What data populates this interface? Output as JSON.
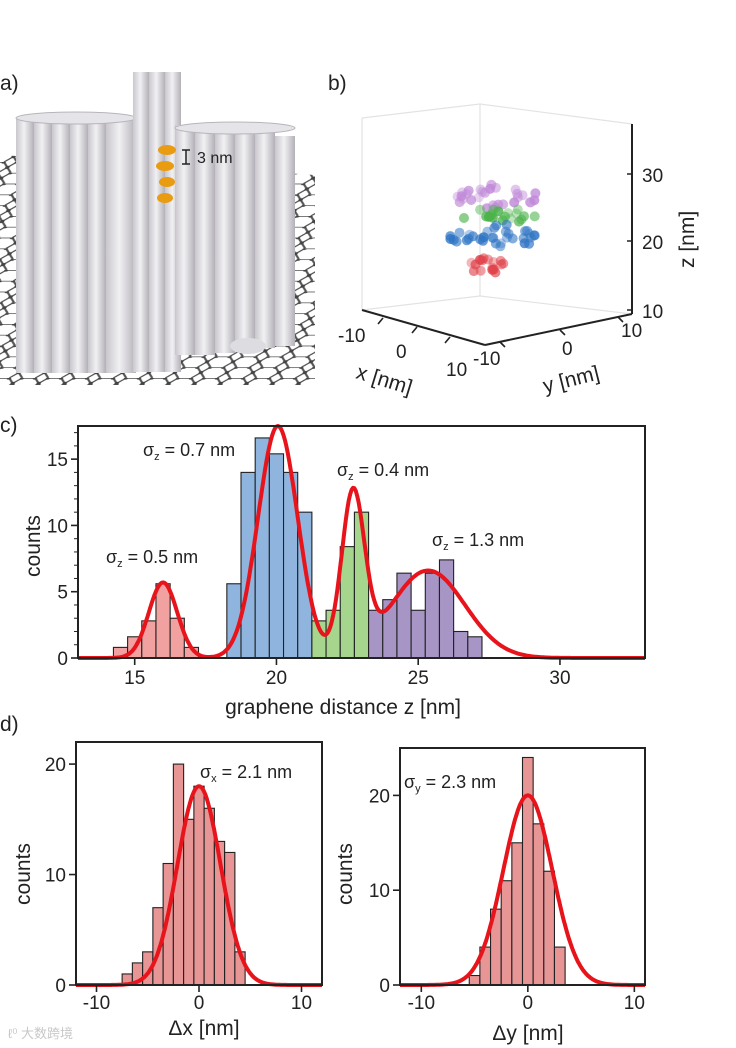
{
  "panel_labels": {
    "a": "a)",
    "b": "b)",
    "c": "c)",
    "d": "d)"
  },
  "panel_a": {
    "scale_label": "3 nm"
  },
  "panel_b": {
    "x_label": "x [nm]",
    "y_label": "y [nm]",
    "z_label": "z [nm]",
    "x_ticks": [
      "-10",
      "0",
      "10"
    ],
    "y_ticks": [
      "-10",
      "0",
      "10"
    ],
    "z_ticks": [
      "10",
      "20",
      "30"
    ]
  },
  "annotations": {
    "c1_sym": "σ",
    "c1_sub": "z",
    "c1_text": " = 0.5 nm",
    "c2_sym": "σ",
    "c2_sub": "z",
    "c2_text": " = 0.7 nm",
    "c3_sym": "σ",
    "c3_sub": "z",
    "c3_text": " = 0.4 nm",
    "c4_sym": "σ",
    "c4_sub": "z",
    "c4_text": " = 1.3 nm",
    "dx_sym": "σ",
    "dx_sub": "x",
    "dx_text": " = 2.1 nm",
    "dy_sym": "σ",
    "dy_sub": "y",
    "dy_text": " = 2.3 nm"
  },
  "watermark": "大数跨境",
  "colors": {
    "fit": "#e8141b",
    "red": "#f2a1a1",
    "blue": "#8fb4dd",
    "green": "#a6d58e",
    "purple": "#a795c6",
    "pink": "#e89595"
  },
  "chart_data": [
    {
      "id": "c",
      "type": "bar",
      "xlabel": "graphene distance z [nm]",
      "ylabel": "counts",
      "xlim": [
        13,
        33
      ],
      "ylim": [
        0,
        17.5
      ],
      "xticks": [
        15,
        20,
        25,
        30
      ],
      "yticks": [
        0,
        5,
        10,
        15
      ],
      "bin_width": 0.5,
      "bins": [
        {
          "x": 14.5,
          "v": 0.8,
          "c": "red"
        },
        {
          "x": 15.0,
          "v": 1.6,
          "c": "red"
        },
        {
          "x": 15.5,
          "v": 2.8,
          "c": "red"
        },
        {
          "x": 16.0,
          "v": 5.6,
          "c": "red"
        },
        {
          "x": 16.5,
          "v": 3.0,
          "c": "red"
        },
        {
          "x": 17.0,
          "v": 0.8,
          "c": "red"
        },
        {
          "x": 18.5,
          "v": 5.6,
          "c": "blue"
        },
        {
          "x": 19.0,
          "v": 14.0,
          "c": "blue"
        },
        {
          "x": 19.5,
          "v": 16.6,
          "c": "blue"
        },
        {
          "x": 20.0,
          "v": 15.4,
          "c": "blue"
        },
        {
          "x": 20.5,
          "v": 14.0,
          "c": "blue"
        },
        {
          "x": 21.0,
          "v": 11.0,
          "c": "blue"
        },
        {
          "x": 21.5,
          "v": 2.8,
          "c": "green"
        },
        {
          "x": 22.0,
          "v": 3.6,
          "c": "green"
        },
        {
          "x": 22.5,
          "v": 8.4,
          "c": "green"
        },
        {
          "x": 23.0,
          "v": 11.0,
          "c": "green"
        },
        {
          "x": 23.5,
          "v": 3.6,
          "c": "purple"
        },
        {
          "x": 24.0,
          "v": 4.4,
          "c": "purple"
        },
        {
          "x": 24.5,
          "v": 6.4,
          "c": "purple"
        },
        {
          "x": 25.0,
          "v": 3.6,
          "c": "purple"
        },
        {
          "x": 25.5,
          "v": 6.4,
          "c": "purple"
        },
        {
          "x": 26.0,
          "v": 7.4,
          "c": "purple"
        },
        {
          "x": 26.5,
          "v": 2.0,
          "c": "purple"
        },
        {
          "x": 27.0,
          "v": 1.6,
          "c": "purple"
        }
      ],
      "fit": [
        {
          "mu": 16.0,
          "sigma": 0.5,
          "amp": 5.7
        },
        {
          "mu": 20.05,
          "sigma": 0.7,
          "amp": 17.5
        },
        {
          "mu": 22.7,
          "sigma": 0.4,
          "amp": 12.0
        },
        {
          "mu": 25.35,
          "sigma": 1.3,
          "amp": 6.6
        }
      ]
    },
    {
      "id": "dx",
      "type": "bar",
      "xlabel": "Δx [nm]",
      "ylabel": "counts",
      "xlim": [
        -12,
        12
      ],
      "ylim": [
        0,
        22
      ],
      "xticks": [
        -10,
        0,
        10
      ],
      "yticks": [
        0,
        10,
        20
      ],
      "bin_width": 1,
      "bins": [
        {
          "x": -7,
          "v": 1.0
        },
        {
          "x": -6,
          "v": 2.0
        },
        {
          "x": -5,
          "v": 3.0
        },
        {
          "x": -4,
          "v": 7.0
        },
        {
          "x": -3,
          "v": 11.0
        },
        {
          "x": -2,
          "v": 20.0
        },
        {
          "x": -1,
          "v": 15.0
        },
        {
          "x": 0,
          "v": 18.0
        },
        {
          "x": 1,
          "v": 16.0
        },
        {
          "x": 2,
          "v": 13.0
        },
        {
          "x": 3,
          "v": 12.0
        },
        {
          "x": 4,
          "v": 3.0
        }
      ],
      "fit": [
        {
          "mu": 0,
          "sigma": 2.1,
          "amp": 18.0
        }
      ]
    },
    {
      "id": "dy",
      "type": "bar",
      "xlabel": "Δy [nm]",
      "ylabel": "counts",
      "xlim": [
        -12,
        11
      ],
      "ylim": [
        0,
        25
      ],
      "xticks": [
        -10,
        0,
        10
      ],
      "yticks": [
        0,
        10,
        20
      ],
      "bin_width": 1,
      "bins": [
        {
          "x": -5,
          "v": 1.0
        },
        {
          "x": -4,
          "v": 4.0
        },
        {
          "x": -3,
          "v": 8.0
        },
        {
          "x": -2,
          "v": 11.0
        },
        {
          "x": -1,
          "v": 15.0
        },
        {
          "x": 0,
          "v": 24.0
        },
        {
          "x": 1,
          "v": 17.0
        },
        {
          "x": 2,
          "v": 12.0
        },
        {
          "x": 3,
          "v": 4.0
        }
      ],
      "fit": [
        {
          "mu": 0,
          "sigma": 2.3,
          "amp": 20.0
        }
      ]
    }
  ]
}
